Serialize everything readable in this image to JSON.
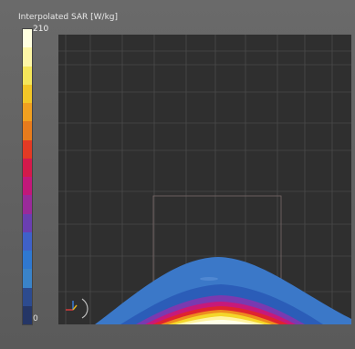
{
  "legend": {
    "title": "Interpolated SAR [W/kg]",
    "max_label": "210",
    "min_label": "0",
    "colors": [
      "#ffffe0",
      "#fdf6a6",
      "#f5e65a",
      "#f2c627",
      "#f0a020",
      "#e77b1c",
      "#e23a24",
      "#d31a4b",
      "#c2187a",
      "#9a2a9a",
      "#6a3fb1",
      "#3f61c8",
      "#2f78d0",
      "#3a83c8",
      "#2d4b8f",
      "#253666"
    ]
  },
  "icons": {
    "axes": "axes-triad-icon"
  }
}
